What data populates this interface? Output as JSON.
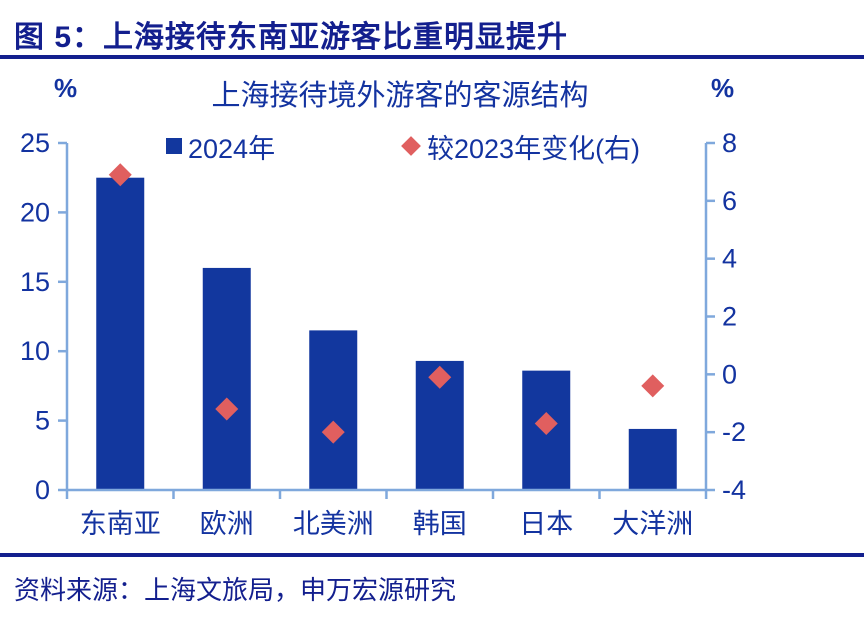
{
  "header": {
    "figure_title": "图 5：上海接待东南亚游客比重明显提升"
  },
  "chart": {
    "title": "上海接待境外游客的客源结构",
    "left_axis_unit": "%",
    "right_axis_unit": "%",
    "legend": {
      "bar_label": "2024年",
      "diamond_label": "较2023年变化(右)"
    }
  },
  "chart_data": {
    "type": "bar",
    "title": "上海接待境外游客的客源结构",
    "categories": [
      "东南亚",
      "欧洲",
      "北美洲",
      "韩国",
      "日本",
      "大洋洲"
    ],
    "series": [
      {
        "name": "2024年",
        "type": "bar",
        "axis": "left",
        "values": [
          22.5,
          16.0,
          11.5,
          9.3,
          8.6,
          4.4
        ]
      },
      {
        "name": "较2023年变化(右)",
        "type": "scatter",
        "marker": "diamond",
        "axis": "right",
        "values": [
          6.9,
          -1.2,
          -2.0,
          -0.1,
          -1.7,
          -0.4
        ]
      }
    ],
    "left_axis": {
      "unit": "%",
      "min": 0,
      "max": 25,
      "ticks": [
        0,
        5,
        10,
        15,
        20,
        25
      ]
    },
    "right_axis": {
      "unit": "%",
      "min": -4,
      "max": 8,
      "ticks": [
        -4,
        -2,
        0,
        2,
        4,
        6,
        8
      ]
    },
    "grid": false,
    "legend_position": "top"
  },
  "footer": {
    "source": "资料来源：上海文旅局，申万宏源研究"
  },
  "colors": {
    "title_navy": "#131F8E",
    "chart_text": "#1333A0",
    "bar_fill": "#12379E",
    "diamond_fill": "#E05F5F",
    "axis_line": "#7FA8DC"
  }
}
